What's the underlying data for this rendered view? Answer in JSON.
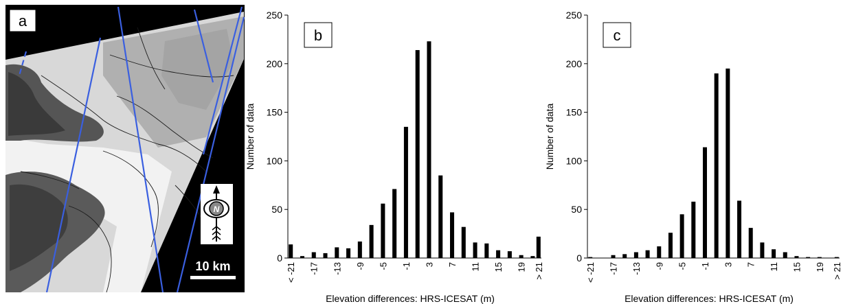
{
  "panel_a": {
    "label": "a",
    "scale_label": "10 km",
    "north_label": "N",
    "icon": "north-arrow-icon",
    "track_color": "#3a5fe0"
  },
  "chart_data": [
    {
      "type": "bar",
      "panel_label": "b",
      "title": "",
      "xlabel": "Elevation differences: HRS-ICESAT (m)",
      "ylabel": "Number of data",
      "ylim": [
        0,
        250
      ],
      "yticks": [
        0,
        50,
        100,
        150,
        200,
        250
      ],
      "grid": false,
      "bar_color": "#000000",
      "categories": [
        "< -21",
        "-20",
        "-19",
        "-18",
        "-17",
        "-16",
        "-15",
        "-14",
        "-13",
        "-12",
        "-11",
        "-10",
        "-9",
        "-8",
        "-7",
        "-6",
        "-5",
        "-4",
        "-3",
        "-2",
        "-1",
        "0",
        "1",
        "2",
        "3",
        "4",
        "5",
        "6",
        "7",
        "8",
        "9",
        "10",
        "11",
        "12",
        "13",
        "14",
        "15",
        "16",
        "17",
        "18",
        "19",
        "20",
        "21",
        "> 21"
      ],
      "tick_labels": [
        "< -21",
        "-17",
        "-13",
        "-9",
        "-5",
        "-1",
        "3",
        "7",
        "11",
        "15",
        "19",
        "> 21"
      ],
      "values": [
        14,
        0,
        2,
        0,
        6,
        0,
        5,
        0,
        11,
        0,
        10,
        0,
        17,
        0,
        34,
        0,
        56,
        0,
        71,
        0,
        135,
        0,
        214,
        0,
        223,
        0,
        85,
        0,
        47,
        0,
        32,
        0,
        16,
        0,
        15,
        0,
        8,
        0,
        7,
        0,
        3,
        0,
        2,
        22
      ]
    },
    {
      "type": "bar",
      "panel_label": "c",
      "title": "",
      "xlabel": "Elevation differences: HRS-ICESAT (m)",
      "ylabel": "Number of data",
      "ylim": [
        0,
        250
      ],
      "yticks": [
        0,
        50,
        100,
        150,
        200,
        250
      ],
      "grid": false,
      "bar_color": "#000000",
      "categories": [
        "< -21",
        "-20",
        "-19",
        "-18",
        "-17",
        "-16",
        "-15",
        "-14",
        "-13",
        "-12",
        "-11",
        "-10",
        "-9",
        "-8",
        "-7",
        "-6",
        "-5",
        "-4",
        "-3",
        "-2",
        "-1",
        "0",
        "1",
        "2",
        "3",
        "4",
        "5",
        "6",
        "7",
        "8",
        "9",
        "10",
        "11",
        "12",
        "13",
        "14",
        "15",
        "16",
        "17",
        "18",
        "19",
        "20",
        "21",
        "> 21"
      ],
      "tick_labels": [
        "< -21",
        "-17",
        "-13",
        "-9",
        "-5",
        "-1",
        "3",
        "7",
        "11",
        "15",
        "19",
        "> 21"
      ],
      "values": [
        1,
        0,
        0,
        0,
        3,
        0,
        4,
        0,
        6,
        0,
        8,
        0,
        12,
        0,
        26,
        0,
        45,
        0,
        58,
        0,
        114,
        0,
        190,
        0,
        195,
        0,
        59,
        0,
        31,
        0,
        16,
        0,
        9,
        0,
        6,
        0,
        2,
        0,
        1,
        0,
        1,
        0,
        0,
        1
      ]
    }
  ]
}
